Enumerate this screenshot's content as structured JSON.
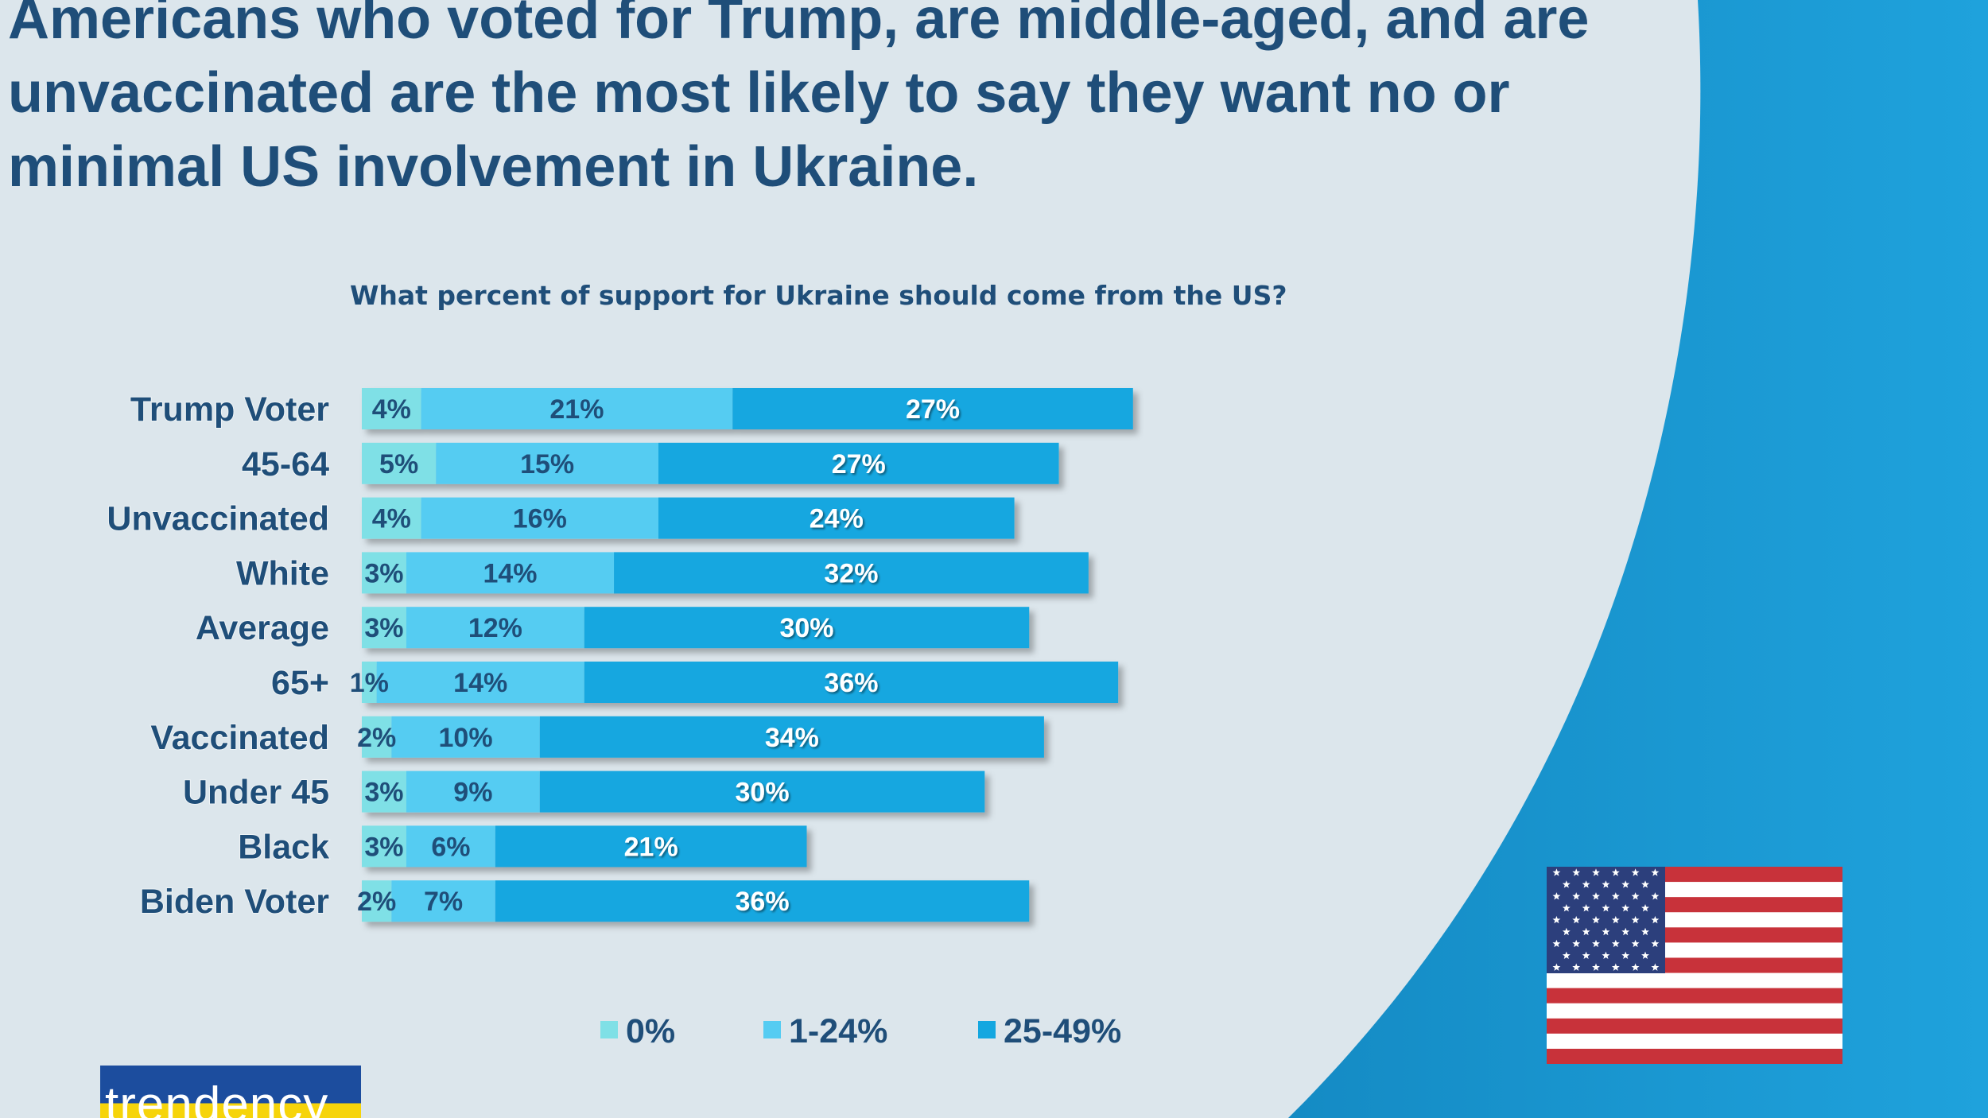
{
  "headline": "Americans who voted for Trump, are middle-aged, and are unvaccinated are the most likely to say they want no or minimal US involvement in Ukraine.",
  "logo_text": "trendency",
  "colors": {
    "background_light": "#dce6ec",
    "background_dark": "#1a8ccc",
    "title": "#1f4e79",
    "series_0": "#7fe0e6",
    "series_1": "#55ccf2",
    "series_2": "#14a7e0"
  },
  "icons": {
    "flag": "us-flag-icon"
  },
  "chart_data": {
    "type": "bar",
    "orientation": "horizontal",
    "stacked": true,
    "title": "What percent of support for Ukraine should come from the US?",
    "categories": [
      "Trump Voter",
      "45-64",
      "Unvaccinated",
      "White",
      "Average",
      "65+",
      "Vaccinated",
      "Under 45",
      "Black",
      "Biden Voter"
    ],
    "series": [
      {
        "name": "0%",
        "values": [
          4,
          5,
          4,
          3,
          3,
          1,
          2,
          3,
          3,
          2
        ],
        "labels": [
          "4%",
          "5%",
          "4%",
          "3%",
          "3%",
          "1%",
          "2%",
          "3%",
          "3%",
          "2%"
        ]
      },
      {
        "name": "1-24%",
        "values": [
          21,
          15,
          16,
          14,
          12,
          14,
          10,
          9,
          6,
          7
        ],
        "labels": [
          "21%",
          "15%",
          "16%",
          "14%",
          "12%",
          "14%",
          "10%",
          "9%",
          "6%",
          "7%"
        ]
      },
      {
        "name": "25-49%",
        "values": [
          27,
          27,
          24,
          32,
          30,
          36,
          34,
          30,
          21,
          36
        ],
        "labels": [
          "27%",
          "27%",
          "24%",
          "32%",
          "30%",
          "36%",
          "34%",
          "30%",
          "21%",
          "36%"
        ]
      }
    ],
    "legend_position": "bottom",
    "grid": false
  }
}
